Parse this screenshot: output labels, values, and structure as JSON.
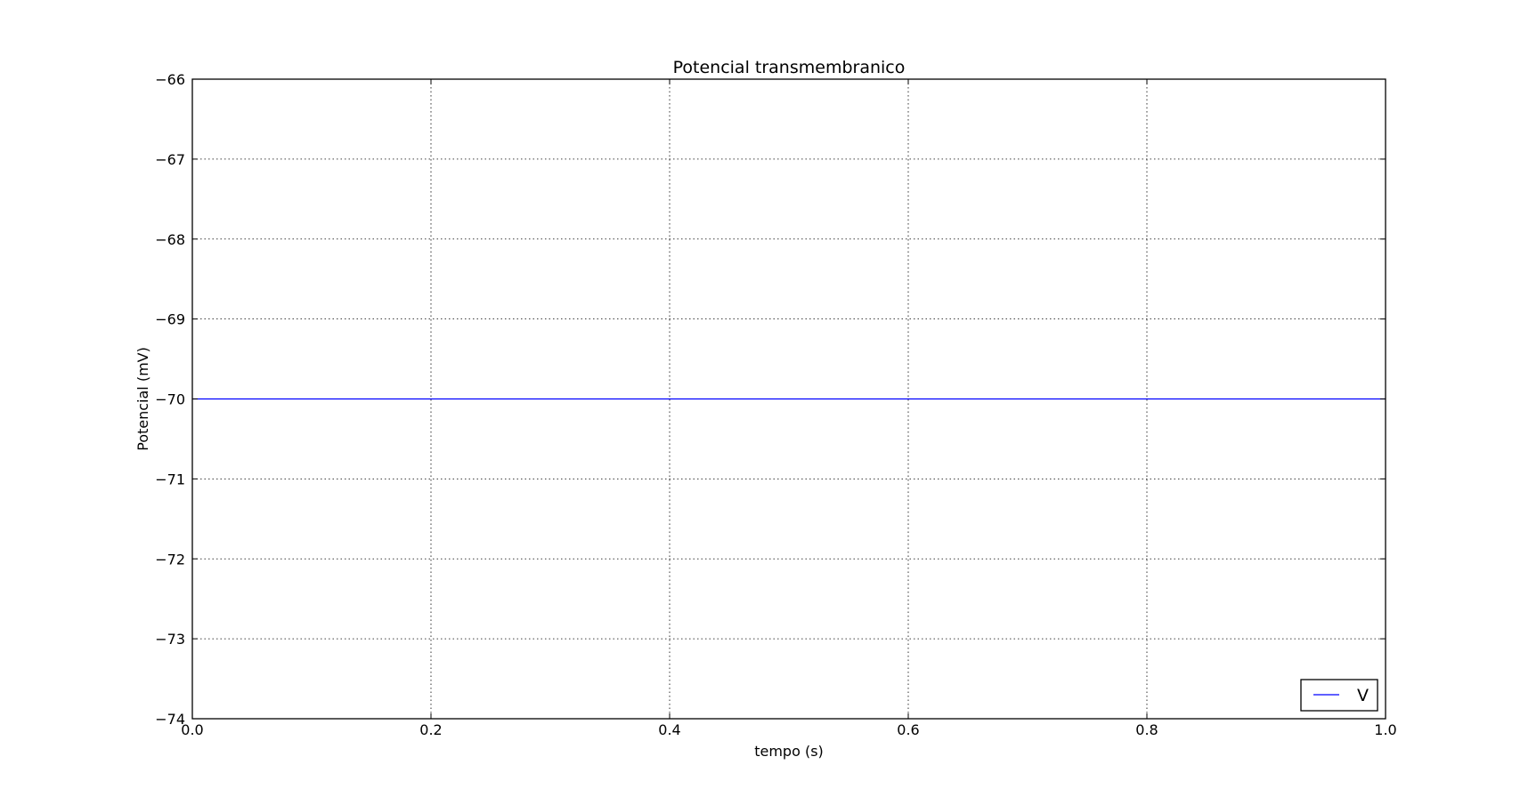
{
  "chart_data": {
    "type": "line",
    "title": "Potencial transmembranico",
    "xlabel": "tempo (s)",
    "ylabel": "Potencial (mV)",
    "xlim": [
      0.0,
      1.0
    ],
    "ylim": [
      -74,
      -66
    ],
    "xticks": [
      0.0,
      0.2,
      0.4,
      0.6,
      0.8,
      1.0
    ],
    "xtick_labels": [
      "0.0",
      "0.2",
      "0.4",
      "0.6",
      "0.8",
      "1.0"
    ],
    "yticks": [
      -66,
      -67,
      -68,
      -69,
      -70,
      -71,
      -72,
      -73,
      -74
    ],
    "ytick_labels": [
      "−66",
      "−67",
      "−68",
      "−69",
      "−70",
      "−71",
      "−72",
      "−73",
      "−74"
    ],
    "grid": true,
    "legend_position": "lower-right",
    "series": [
      {
        "name": "V",
        "color": "#0000ff",
        "x": [
          0.0,
          1.0
        ],
        "y": [
          -70,
          -70
        ]
      }
    ]
  }
}
